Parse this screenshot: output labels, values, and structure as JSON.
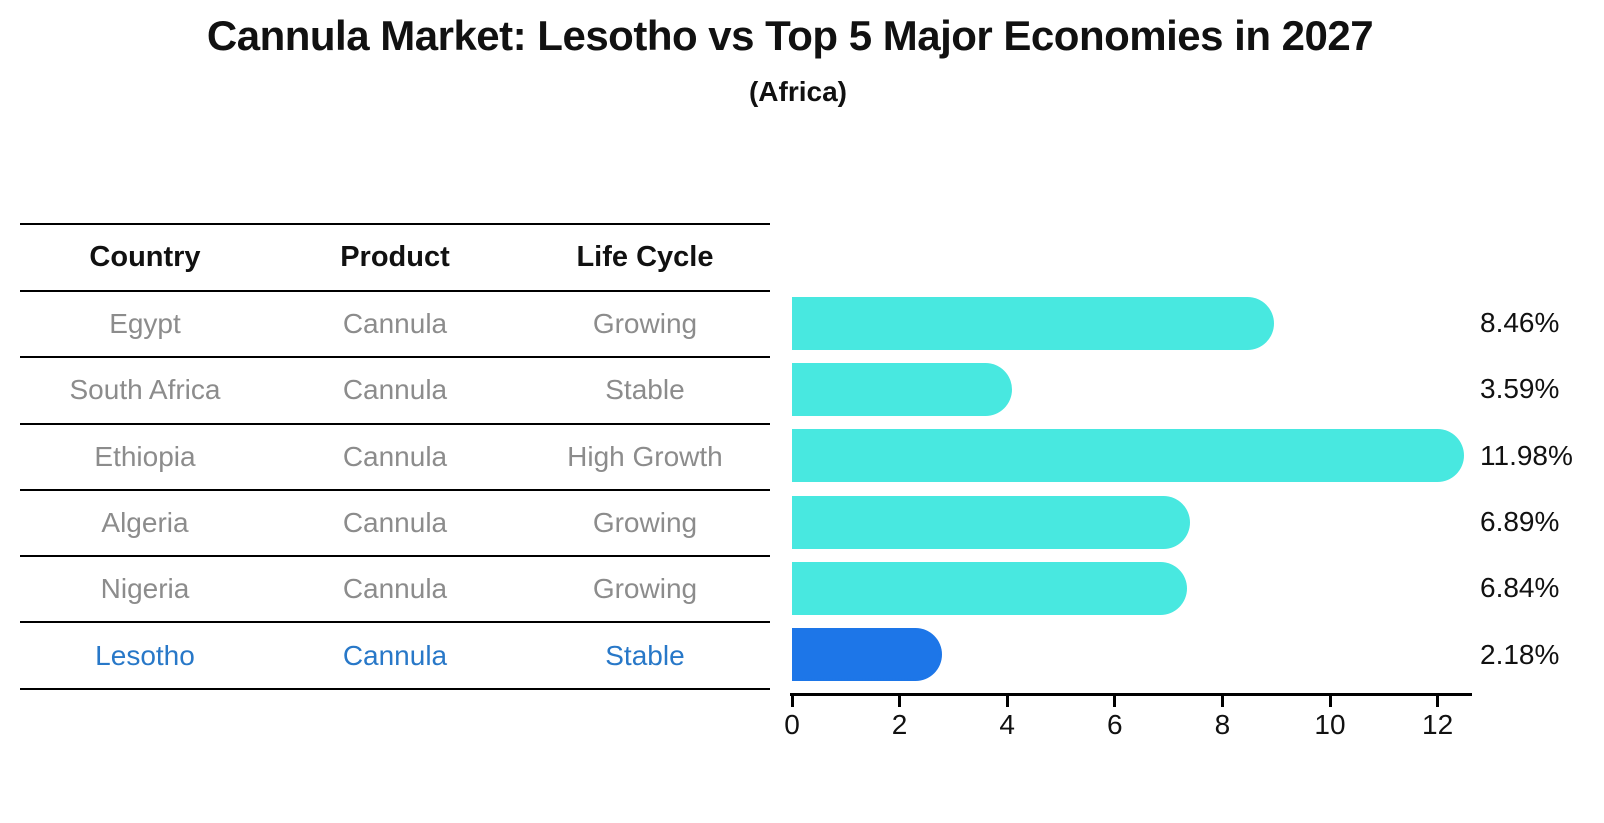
{
  "title": "Cannula Market: Lesotho vs Top 5 Major Economies in 2027",
  "subtitle": "(Africa)",
  "table": {
    "headers": [
      "Country",
      "Product",
      "Life Cycle"
    ],
    "rows": [
      {
        "country": "Egypt",
        "product": "Cannula",
        "life_cycle": "Growing",
        "highlight": false
      },
      {
        "country": "South Africa",
        "product": "Cannula",
        "life_cycle": "Stable",
        "highlight": false
      },
      {
        "country": "Ethiopia",
        "product": "Cannula",
        "life_cycle": "High Growth",
        "highlight": false
      },
      {
        "country": "Algeria",
        "product": "Cannula",
        "life_cycle": "Growing",
        "highlight": false
      },
      {
        "country": "Nigeria",
        "product": "Cannula",
        "life_cycle": "Growing",
        "highlight": false
      },
      {
        "country": "Lesotho",
        "product": "Cannula",
        "life_cycle": "Stable",
        "highlight": true
      }
    ]
  },
  "chart_data": {
    "type": "bar",
    "orientation": "horizontal",
    "title": "Cannula Market: Lesotho vs Top 5 Major Economies in 2027",
    "subtitle": "(Africa)",
    "categories": [
      "Egypt",
      "South Africa",
      "Ethiopia",
      "Algeria",
      "Nigeria",
      "Lesotho"
    ],
    "values": [
      8.46,
      3.59,
      11.98,
      6.89,
      6.84,
      2.18
    ],
    "value_labels": [
      "8.46%",
      "3.59%",
      "11.98%",
      "6.89%",
      "6.84%",
      "2.18%"
    ],
    "x_ticks": [
      "0",
      "2",
      "4",
      "6",
      "8",
      "10",
      "12"
    ],
    "x_tick_values": [
      0,
      2,
      4,
      6,
      8,
      10,
      12
    ],
    "xlim": [
      0,
      12.7
    ],
    "grid": false,
    "legend": "none",
    "bar_color": "#48e8e0",
    "highlight_color": "#1d76e8",
    "highlight_index": 5
  },
  "colors": {
    "bar": "#48e8e0",
    "highlight": "#1d76e8",
    "table_text": "#8c8c8c",
    "highlight_text": "#2878c8",
    "axis": "#000000"
  }
}
